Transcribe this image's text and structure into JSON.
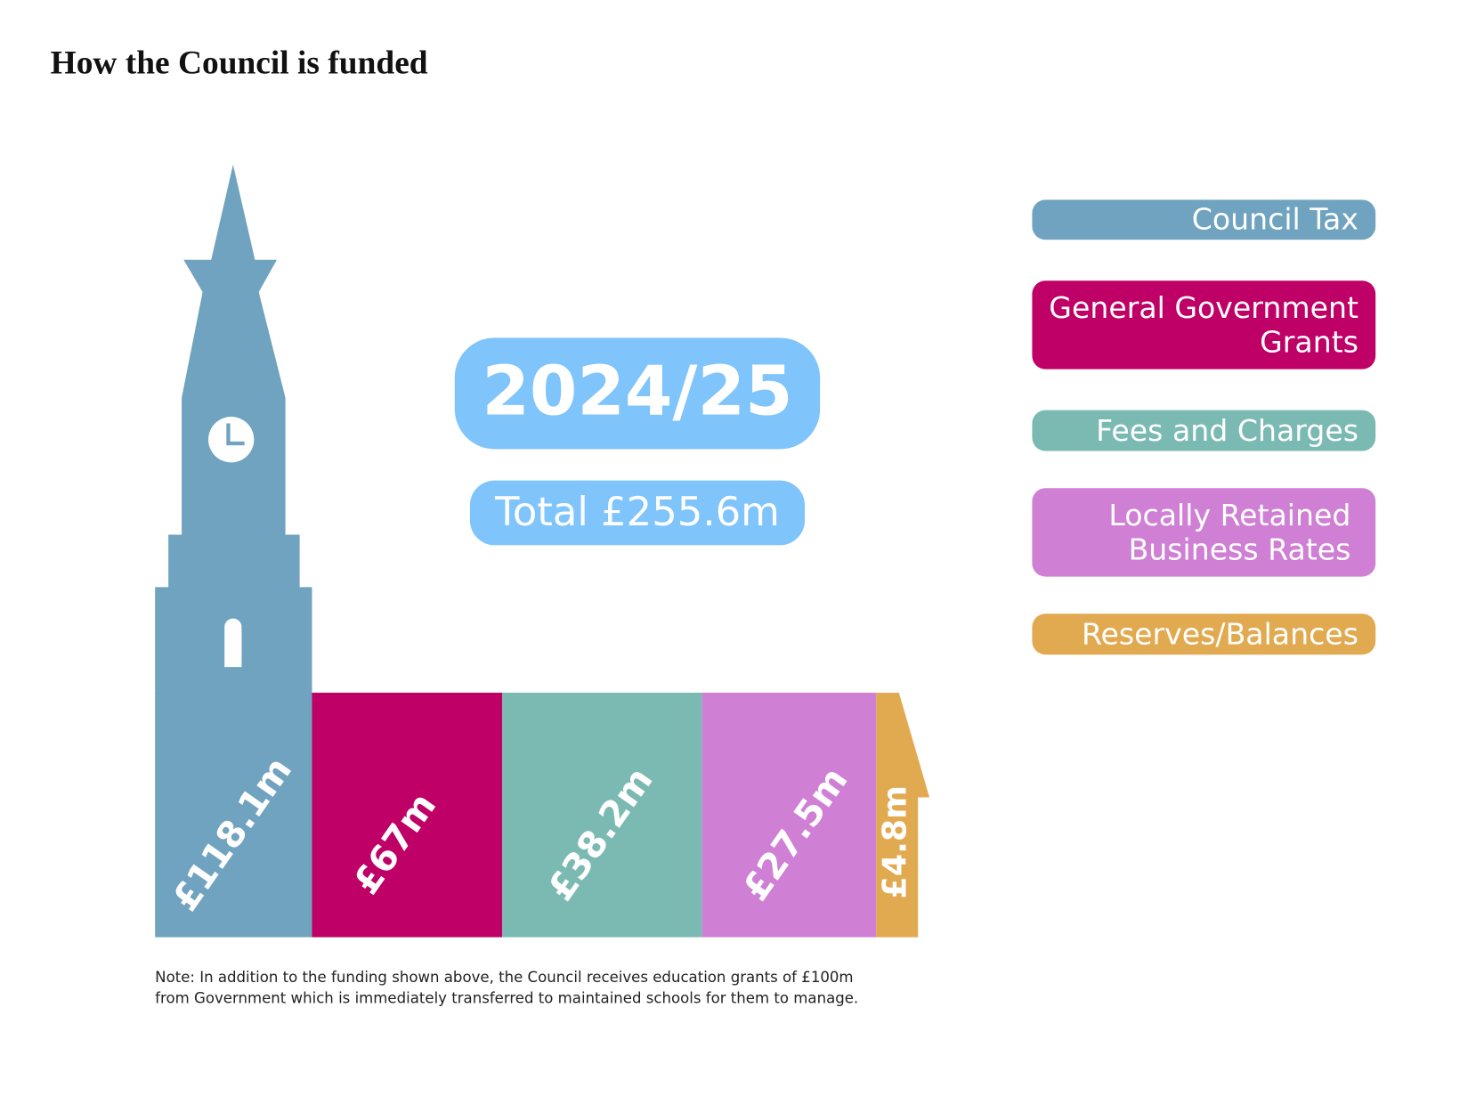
{
  "chart_data": {
    "type": "bar",
    "title": "How the Council is funded",
    "period": "2024/25",
    "total_label": "Total £255.6m",
    "categories": [
      "Council Tax",
      "General Government Grants",
      "Fees and Charges",
      "Locally Retained Business Rates",
      "Reserves/Balances"
    ],
    "values": [
      118.1,
      67,
      38.2,
      27.5,
      4.8
    ],
    "value_labels": [
      "£118.1m",
      "£67m",
      "£38.2m",
      "£27.5m",
      "£4.8m"
    ],
    "colors": [
      "#6fa3bf",
      "#bf0066",
      "#7bbab2",
      "#cf7fd4",
      "#e2aa50"
    ],
    "note": [
      "Note: In addition to the funding shown above, the Council receives education grants of £100m",
      "from Government which is immediately transferred to maintained schools for them to manage."
    ]
  }
}
